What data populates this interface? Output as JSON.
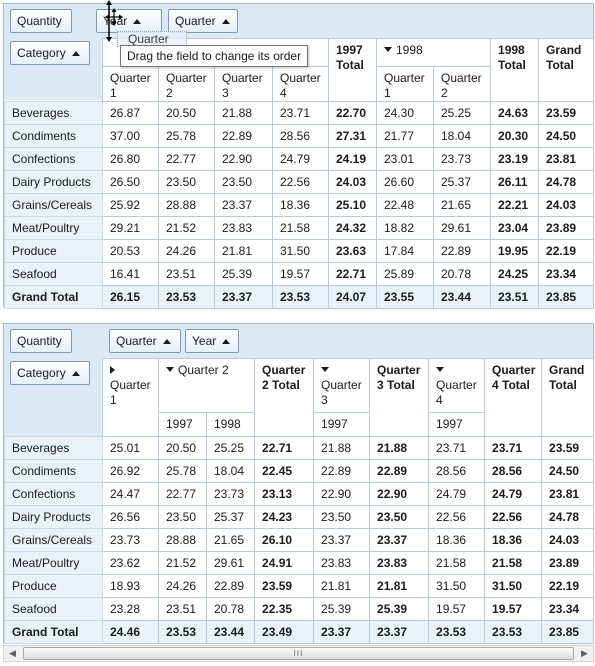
{
  "grid1": {
    "filter_fields": [
      "Quantity"
    ],
    "column_fields": [
      "Year",
      "Quarter"
    ],
    "row_fields": [
      "Category"
    ],
    "drag": {
      "ghost_label": "Quarter",
      "tooltip": "Drag the field to change its order"
    },
    "headers": {
      "y1997": "1997",
      "q1997": [
        "Quarter 1",
        "Quarter 2",
        "Quarter 3",
        "Quarter 4"
      ],
      "total1997": "1997 Total",
      "y1998": "1998",
      "q1998": [
        "Quarter 1",
        "Quarter 2"
      ],
      "total1998": "1998 Total",
      "grand_total": "Grand Total"
    },
    "rows": [
      {
        "label": "Beverages",
        "values": [
          "26.87",
          "20.50",
          "21.88",
          "23.71",
          "22.70",
          "24.30",
          "25.25",
          "24.63",
          "23.59"
        ]
      },
      {
        "label": "Condiments",
        "values": [
          "37.00",
          "25.78",
          "22.89",
          "28.56",
          "27.31",
          "21.77",
          "18.04",
          "20.30",
          "24.50"
        ]
      },
      {
        "label": "Confections",
        "values": [
          "26.80",
          "22.77",
          "22.90",
          "24.79",
          "24.19",
          "23.01",
          "23.73",
          "23.19",
          "23.81"
        ]
      },
      {
        "label": "Dairy Products",
        "values": [
          "26.50",
          "23.50",
          "23.50",
          "22.56",
          "24.03",
          "26.60",
          "25.37",
          "26.11",
          "24.78"
        ]
      },
      {
        "label": "Grains/Cereals",
        "values": [
          "25.92",
          "28.88",
          "23.37",
          "18.36",
          "25.10",
          "22.48",
          "21.65",
          "22.21",
          "24.03"
        ]
      },
      {
        "label": "Meat/Poultry",
        "values": [
          "29.21",
          "21.52",
          "23.83",
          "21.58",
          "24.32",
          "18.82",
          "29.61",
          "23.04",
          "23.89"
        ]
      },
      {
        "label": "Produce",
        "values": [
          "20.53",
          "24.26",
          "21.81",
          "31.50",
          "23.63",
          "17.84",
          "22.89",
          "19.95",
          "22.19"
        ]
      },
      {
        "label": "Seafood",
        "values": [
          "16.41",
          "23.51",
          "25.39",
          "19.57",
          "22.71",
          "25.89",
          "20.78",
          "24.25",
          "23.34"
        ]
      }
    ],
    "grand_total_row": {
      "label": "Grand Total",
      "values": [
        "26.15",
        "23.53",
        "23.37",
        "23.53",
        "24.07",
        "23.55",
        "23.44",
        "23.51",
        "23.85"
      ]
    }
  },
  "grid2": {
    "filter_fields": [
      "Quantity"
    ],
    "column_fields": [
      "Quarter",
      "Year"
    ],
    "row_fields": [
      "Category"
    ],
    "headers": {
      "q1": "Quarter 1",
      "q2": "Quarter 2",
      "q2_years": [
        "1997",
        "1998"
      ],
      "q2_total": "Quarter 2 Total",
      "q3": "Quarter 3",
      "q3_years": [
        "1997"
      ],
      "q3_total": "Quarter 3 Total",
      "q4": "Quarter 4",
      "q4_years": [
        "1997"
      ],
      "q4_total": "Quarter 4 Total",
      "grand_total": "Grand Total"
    },
    "rows": [
      {
        "label": "Beverages",
        "values": [
          "25.01",
          "20.50",
          "25.25",
          "22.71",
          "21.88",
          "21.88",
          "23.71",
          "23.71",
          "23.59"
        ]
      },
      {
        "label": "Condiments",
        "values": [
          "26.92",
          "25.78",
          "18.04",
          "22.45",
          "22.89",
          "22.89",
          "28.56",
          "28.56",
          "24.50"
        ]
      },
      {
        "label": "Confections",
        "values": [
          "24.47",
          "22.77",
          "23.73",
          "23.13",
          "22.90",
          "22.90",
          "24.79",
          "24.79",
          "23.81"
        ]
      },
      {
        "label": "Dairy Products",
        "values": [
          "26.56",
          "23.50",
          "25.37",
          "24.23",
          "23.50",
          "23.50",
          "22.56",
          "22.56",
          "24.78"
        ]
      },
      {
        "label": "Grains/Cereals",
        "values": [
          "23.73",
          "28.88",
          "21.65",
          "26.10",
          "23.37",
          "23.37",
          "18.36",
          "18.36",
          "24.03"
        ]
      },
      {
        "label": "Meat/Poultry",
        "values": [
          "23.62",
          "21.52",
          "29.61",
          "24.91",
          "23.83",
          "23.83",
          "21.58",
          "21.58",
          "23.89"
        ]
      },
      {
        "label": "Produce",
        "values": [
          "18.93",
          "24.26",
          "22.89",
          "23.59",
          "21.81",
          "21.81",
          "31.50",
          "31.50",
          "22.19"
        ]
      },
      {
        "label": "Seafood",
        "values": [
          "23.28",
          "23.51",
          "20.78",
          "22.35",
          "25.39",
          "25.39",
          "19.57",
          "19.57",
          "23.34"
        ]
      }
    ],
    "grand_total_row": {
      "label": "Grand Total",
      "values": [
        "24.46",
        "23.53",
        "23.44",
        "23.49",
        "23.37",
        "23.37",
        "23.53",
        "23.53",
        "23.85"
      ]
    }
  },
  "scrollbar": {
    "grip": "III",
    "left_arrow": "◀",
    "right_arrow": "▶"
  }
}
